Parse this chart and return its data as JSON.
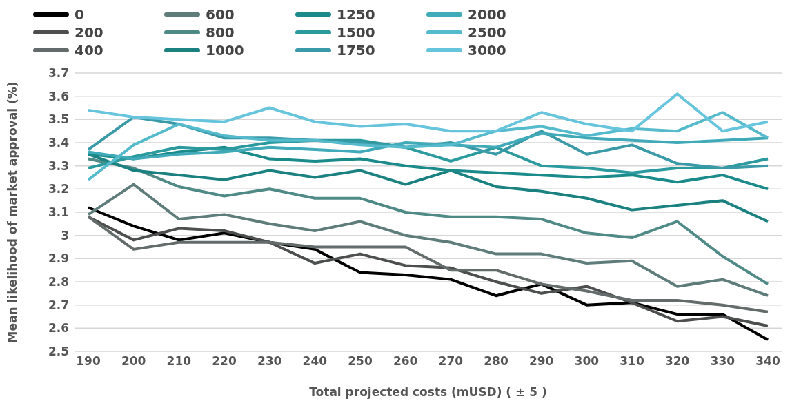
{
  "chart_data": {
    "type": "line",
    "xlabel": "Total projected costs (mUSD) ( ± 5 )",
    "ylabel": "Mean likelihood of market approval (%)",
    "categories": [
      "190",
      "200",
      "210",
      "220",
      "230",
      "240",
      "250",
      "260",
      "270",
      "280",
      "290",
      "300",
      "310",
      "320",
      "330",
      "340"
    ],
    "ylim": [
      2.5,
      3.7
    ],
    "yticks": [
      {
        "value": 2.5,
        "label": "2.5"
      },
      {
        "value": 2.6,
        "label": "2.6"
      },
      {
        "value": 2.7,
        "label": "2.7"
      },
      {
        "value": 2.8,
        "label": "2.8"
      },
      {
        "value": 2.9,
        "label": "2.9"
      },
      {
        "value": 3,
        "label": "3"
      },
      {
        "value": 3.1,
        "label": "3.1"
      },
      {
        "value": 3.2,
        "label": "3.2"
      },
      {
        "value": 3.3,
        "label": "3.3"
      },
      {
        "value": 3.4,
        "label": "3.4"
      },
      {
        "value": 3.5,
        "label": "3.5"
      },
      {
        "value": 3.6,
        "label": "3.6"
      },
      {
        "value": 3.7,
        "label": "3.7"
      }
    ],
    "grid": "y",
    "legend": "top left",
    "marker": "none",
    "line_style": "solid",
    "series": [
      {
        "name": "0",
        "color": "#000000",
        "values": [
          3.12,
          3.04,
          2.98,
          3.01,
          2.97,
          2.94,
          2.84,
          2.83,
          2.81,
          2.74,
          2.79,
          2.7,
          2.71,
          2.66,
          2.66,
          2.55
        ]
      },
      {
        "name": "200",
        "color": "#4d4f4f",
        "values": [
          3.08,
          2.98,
          3.03,
          3.02,
          2.97,
          2.88,
          2.92,
          2.87,
          2.86,
          2.8,
          2.75,
          2.78,
          2.71,
          2.63,
          2.65,
          2.61
        ]
      },
      {
        "name": "400",
        "color": "#636b6b",
        "values": [
          3.08,
          2.94,
          2.97,
          2.97,
          2.97,
          2.95,
          2.95,
          2.95,
          2.85,
          2.85,
          2.79,
          2.76,
          2.72,
          2.72,
          2.7,
          2.67
        ]
      },
      {
        "name": "600",
        "color": "#5e7c7a",
        "values": [
          3.09,
          3.22,
          3.07,
          3.09,
          3.05,
          3.02,
          3.06,
          3.0,
          2.97,
          2.92,
          2.92,
          2.88,
          2.89,
          2.78,
          2.81,
          2.74
        ]
      },
      {
        "name": "800",
        "color": "#4f8a87",
        "values": [
          3.33,
          3.29,
          3.21,
          3.17,
          3.2,
          3.16,
          3.16,
          3.1,
          3.08,
          3.08,
          3.07,
          3.01,
          2.99,
          3.06,
          2.91,
          2.79
        ]
      },
      {
        "name": "1000",
        "color": "#1a8080",
        "values": [
          3.35,
          3.28,
          3.26,
          3.24,
          3.28,
          3.25,
          3.28,
          3.22,
          3.28,
          3.21,
          3.19,
          3.16,
          3.11,
          3.13,
          3.15,
          3.06
        ]
      },
      {
        "name": "1250",
        "color": "#1a8a8a",
        "values": [
          3.35,
          3.33,
          3.36,
          3.38,
          3.33,
          3.32,
          3.33,
          3.3,
          3.28,
          3.27,
          3.26,
          3.25,
          3.26,
          3.23,
          3.26,
          3.2
        ]
      },
      {
        "name": "1500",
        "color": "#2a9a9e",
        "values": [
          3.29,
          3.34,
          3.38,
          3.37,
          3.4,
          3.41,
          3.41,
          3.38,
          3.32,
          3.38,
          3.3,
          3.29,
          3.27,
          3.29,
          3.29,
          3.33
        ]
      },
      {
        "name": "1750",
        "color": "#3a9aa8",
        "values": [
          3.37,
          3.51,
          3.48,
          3.42,
          3.42,
          3.41,
          3.4,
          3.38,
          3.4,
          3.35,
          3.45,
          3.35,
          3.39,
          3.31,
          3.29,
          3.3
        ]
      },
      {
        "name": "2000",
        "color": "#40aab8",
        "values": [
          3.36,
          3.33,
          3.35,
          3.36,
          3.38,
          3.37,
          3.36,
          3.4,
          3.39,
          3.38,
          3.44,
          3.42,
          3.41,
          3.4,
          3.41,
          3.42
        ]
      },
      {
        "name": "2500",
        "color": "#55bbcc",
        "values": [
          3.24,
          3.39,
          3.48,
          3.43,
          3.41,
          3.41,
          3.39,
          3.38,
          3.39,
          3.45,
          3.47,
          3.43,
          3.46,
          3.45,
          3.53,
          3.42
        ]
      },
      {
        "name": "3000",
        "color": "#66c4dd",
        "values": [
          3.54,
          3.51,
          3.5,
          3.49,
          3.55,
          3.49,
          3.47,
          3.48,
          3.45,
          3.45,
          3.53,
          3.48,
          3.45,
          3.61,
          3.45,
          3.49
        ]
      }
    ]
  }
}
